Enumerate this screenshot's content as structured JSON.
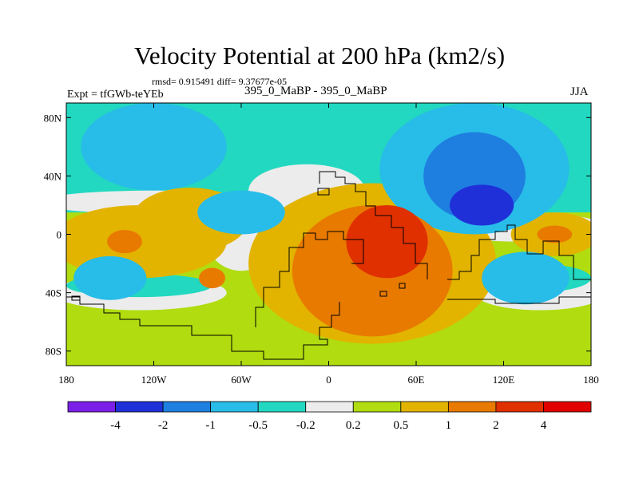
{
  "header": {
    "title": "Velocity Potential at 200 hPa (km2/s)",
    "stats": "rmsd= 0.915491 diff= 9.37677e-05",
    "expt": "Expt = tfGWb-teYEb",
    "subtitle": "395_0_MaBP - 395_0_MaBP",
    "season": "JJA"
  },
  "chart_data": {
    "type": "heatmap",
    "title": "Velocity Potential at 200 hPa (km2/s)",
    "units": "km2/s",
    "xlim": [
      -180,
      180
    ],
    "ylim": [
      -90,
      90
    ],
    "x_ticks": [
      {
        "value": -180,
        "label": "180"
      },
      {
        "value": -120,
        "label": "120W"
      },
      {
        "value": -60,
        "label": "60W"
      },
      {
        "value": 0,
        "label": "0"
      },
      {
        "value": 60,
        "label": "60E"
      },
      {
        "value": 120,
        "label": "120E"
      },
      {
        "value": 180,
        "label": "180"
      }
    ],
    "y_ticks": [
      {
        "value": 80,
        "label": "80N"
      },
      {
        "value": 40,
        "label": "40N"
      },
      {
        "value": 0,
        "label": "0"
      },
      {
        "value": -40,
        "label": "40S"
      },
      {
        "value": -80,
        "label": "80S"
      }
    ],
    "colorbar": {
      "levels": [
        "-4",
        "-2",
        "-1",
        "-0.5",
        "-0.2",
        "0.2",
        "0.5",
        "1",
        "2",
        "4"
      ],
      "colors": [
        "#7b1fe8",
        "#2030d8",
        "#1e7fe0",
        "#28bce8",
        "#22d8c0",
        "#ececec",
        "#b0dc10",
        "#e2b400",
        "#e87a00",
        "#e03000",
        "#e00000"
      ]
    },
    "fields": [
      {
        "name": "band-tropical-east",
        "level": 7,
        "cx": 30,
        "cy": -20,
        "rx": 85,
        "ry": 55
      },
      {
        "name": "band-west",
        "level": 7,
        "cx": -130,
        "cy": -5,
        "rx": 60,
        "ry": 25
      },
      {
        "name": "band-west2",
        "level": 7,
        "cx": -95,
        "cy": 10,
        "rx": 40,
        "ry": 22
      },
      {
        "name": "band-east-pacific",
        "level": 7,
        "cx": 155,
        "cy": 0,
        "rx": 30,
        "ry": 15
      },
      {
        "name": "neg-asia-1",
        "level": 3,
        "cx": 100,
        "cy": 45,
        "rx": 65,
        "ry": 45
      },
      {
        "name": "neg-asia-2",
        "level": 2,
        "cx": 100,
        "cy": 40,
        "rx": 35,
        "ry": 30
      },
      {
        "name": "neg-asia-3",
        "level": 1,
        "cx": 105,
        "cy": 20,
        "rx": 22,
        "ry": 14
      },
      {
        "name": "neg-northpac",
        "level": 3,
        "cx": -120,
        "cy": 60,
        "rx": 50,
        "ry": 30
      },
      {
        "name": "neg-northpac2",
        "level": 3,
        "cx": -60,
        "cy": 15,
        "rx": 30,
        "ry": 15
      },
      {
        "name": "neg-south-pac",
        "level": 3,
        "cx": 135,
        "cy": -30,
        "rx": 30,
        "ry": 18
      },
      {
        "name": "neg-south-west",
        "level": 3,
        "cx": -150,
        "cy": -30,
        "rx": 25,
        "ry": 15
      },
      {
        "name": "max-1",
        "level": 8,
        "cx": 30,
        "cy": -25,
        "rx": 55,
        "ry": 45
      },
      {
        "name": "max-2",
        "level": 9,
        "cx": 40,
        "cy": -5,
        "rx": 28,
        "ry": 25
      },
      {
        "name": "max-west",
        "level": 8,
        "cx": -140,
        "cy": -5,
        "rx": 12,
        "ry": 8
      },
      {
        "name": "max-west2",
        "level": 8,
        "cx": -80,
        "cy": -30,
        "rx": 9,
        "ry": 7
      },
      {
        "name": "max-east",
        "level": 8,
        "cx": 155,
        "cy": 0,
        "rx": 12,
        "ry": 6
      }
    ]
  }
}
